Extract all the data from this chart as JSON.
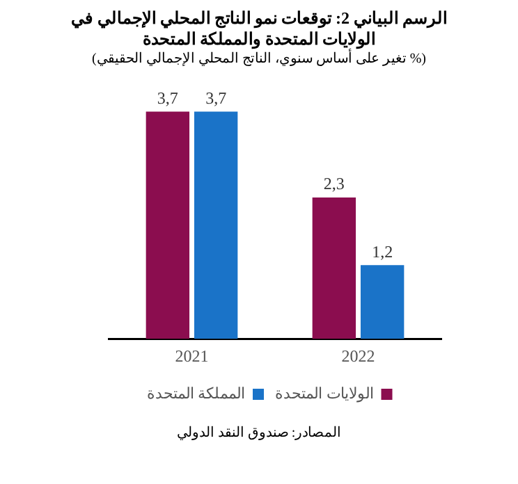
{
  "chart_data": {
    "type": "bar",
    "title": "الرسم البياني 2: توقعات نمو الناتج المحلي الإجمالي في الولايات المتحدة والمملكة المتحدة",
    "subtitle": "(% تغير على أساس سنوي، الناتج المحلي الإجمالي الحقيقي)",
    "categories": [
      "2021",
      "2022"
    ],
    "series": [
      {
        "name": "الولايات المتحدة",
        "color": "#8b0d4f",
        "values": [
          3.7,
          2.3
        ],
        "value_labels": [
          "3,7",
          "2,3"
        ]
      },
      {
        "name": "المملكة المتحدة",
        "color": "#1a73c8",
        "values": [
          3.7,
          1.2
        ],
        "value_labels": [
          "3,7",
          "1,2"
        ]
      }
    ],
    "relative": false,
    "legend": "bottom",
    "grid": false,
    "annotations": [
      "المصادر: صندوق النقد الدولي"
    ]
  }
}
